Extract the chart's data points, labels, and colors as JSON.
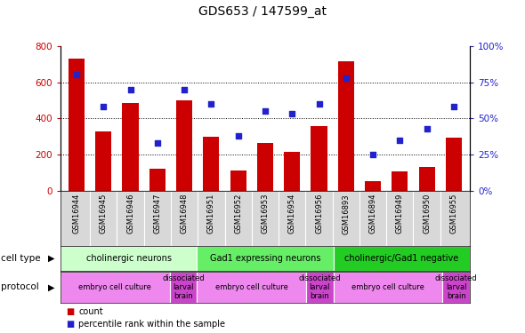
{
  "title": "GDS653 / 147599_at",
  "samples": [
    "GSM16944",
    "GSM16945",
    "GSM16946",
    "GSM16947",
    "GSM16948",
    "GSM16951",
    "GSM16952",
    "GSM16953",
    "GSM16954",
    "GSM16956",
    "GSM16893",
    "GSM16894",
    "GSM16949",
    "GSM16950",
    "GSM16955"
  ],
  "counts": [
    730,
    330,
    485,
    120,
    500,
    300,
    110,
    265,
    215,
    355,
    715,
    55,
    105,
    130,
    295
  ],
  "percentile": [
    80,
    58,
    70,
    33,
    70,
    60,
    38,
    55,
    53,
    60,
    78,
    25,
    35,
    43,
    58
  ],
  "left_ylim": [
    0,
    800
  ],
  "right_ylim": [
    0,
    100
  ],
  "left_yticks": [
    0,
    200,
    400,
    600,
    800
  ],
  "right_yticks": [
    0,
    25,
    50,
    75,
    100
  ],
  "right_yticklabels": [
    "0%",
    "25%",
    "50%",
    "75%",
    "100%"
  ],
  "bar_color": "#cc0000",
  "dot_color": "#2222cc",
  "cell_type_groups": [
    {
      "label": "cholinergic neurons",
      "start": 0,
      "end": 5,
      "color": "#ccffcc"
    },
    {
      "label": "Gad1 expressing neurons",
      "start": 5,
      "end": 10,
      "color": "#66ee66"
    },
    {
      "label": "cholinergic/Gad1 negative",
      "start": 10,
      "end": 15,
      "color": "#22cc22"
    }
  ],
  "protocol_groups": [
    {
      "label": "embryo cell culture",
      "start": 0,
      "end": 4,
      "color": "#ee88ee"
    },
    {
      "label": "dissociated\nlarval\nbrain",
      "start": 4,
      "end": 5,
      "color": "#cc44cc"
    },
    {
      "label": "embryo cell culture",
      "start": 5,
      "end": 9,
      "color": "#ee88ee"
    },
    {
      "label": "dissociated\nlarval\nbrain",
      "start": 9,
      "end": 10,
      "color": "#cc44cc"
    },
    {
      "label": "embryo cell culture",
      "start": 10,
      "end": 14,
      "color": "#ee88ee"
    },
    {
      "label": "dissociated\nlarval\nbrain",
      "start": 14,
      "end": 15,
      "color": "#cc44cc"
    }
  ],
  "legend_count_label": "count",
  "legend_pct_label": "percentile rank within the sample",
  "cell_type_label": "cell type",
  "protocol_label": "protocol",
  "tick_color_left": "#cc0000",
  "tick_color_right": "#2222cc",
  "xtick_bg": "#d8d8d8"
}
